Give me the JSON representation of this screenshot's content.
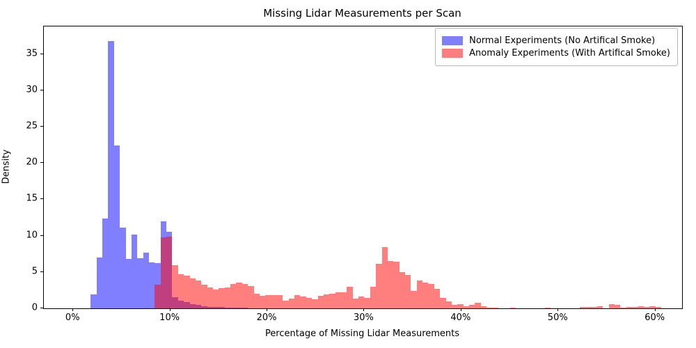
{
  "title": "Missing Lidar Measurements per Scan",
  "x_axis": {
    "label": "Percentage of Missing Lidar Measurements",
    "tick_values": [
      0,
      10,
      20,
      30,
      40,
      50,
      60
    ],
    "tick_labels": [
      "0%",
      "10%",
      "20%",
      "30%",
      "40%",
      "50%",
      "60%"
    ]
  },
  "y_axis": {
    "label": "Density",
    "tick_values": [
      0,
      5,
      10,
      15,
      20,
      25,
      30,
      35
    ],
    "tick_labels": [
      "0",
      "5",
      "10",
      "15",
      "20",
      "25",
      "30",
      "35"
    ]
  },
  "legend": {
    "position": "upper-right",
    "items": [
      {
        "label": "Normal Experiments (No Artifical Smoke)",
        "color": "#7f7ff7"
      },
      {
        "label": "Anomaly Experiments (With Artifical Smoke)",
        "color": "#fb7d7d"
      }
    ]
  },
  "chart_data": {
    "type": "bar",
    "subtype": "overlaid-histograms",
    "title": "Missing Lidar Measurements per Scan",
    "xlabel": "Percentage of Missing Lidar Measurements",
    "ylabel": "Density",
    "grid": false,
    "bin_width_percent": 0.6,
    "xlim_percent": [
      -3.03,
      62.75
    ],
    "ylim": [
      0,
      38.8
    ],
    "series": [
      {
        "name": "Normal Experiments (No Artifical Smoke)",
        "fill": "rgba(0,0,255,0.5)",
        "bins_start_percent_and_density": [
          [
            1.8,
            1.9
          ],
          [
            2.4,
            7.0
          ],
          [
            3.0,
            12.4
          ],
          [
            3.6,
            36.8
          ],
          [
            4.2,
            22.4
          ],
          [
            4.8,
            11.1
          ],
          [
            5.4,
            6.8
          ],
          [
            6.0,
            10.2
          ],
          [
            6.6,
            6.9
          ],
          [
            7.2,
            7.7
          ],
          [
            7.8,
            6.3
          ],
          [
            8.4,
            6.2
          ],
          [
            9.0,
            12.0
          ],
          [
            9.6,
            10.5
          ],
          [
            10.2,
            1.5
          ],
          [
            10.8,
            1.1
          ],
          [
            11.4,
            0.9
          ],
          [
            12.0,
            0.6
          ],
          [
            12.6,
            0.45
          ],
          [
            13.2,
            0.3
          ],
          [
            13.8,
            0.22
          ],
          [
            14.4,
            0.16
          ],
          [
            15.0,
            0.16
          ],
          [
            15.6,
            0.13
          ],
          [
            16.2,
            0.13
          ],
          [
            16.8,
            0.07
          ],
          [
            17.4,
            0.07
          ]
        ]
      },
      {
        "name": "Anomaly Experiments (With Artifical Smoke)",
        "fill": "rgba(255,0,0,0.5)",
        "bins_start_percent_and_density": [
          [
            8.4,
            3.3
          ],
          [
            9.0,
            9.8
          ],
          [
            9.6,
            9.9
          ],
          [
            10.2,
            5.9
          ],
          [
            10.8,
            4.7
          ],
          [
            11.4,
            4.5
          ],
          [
            12.0,
            4.1
          ],
          [
            12.6,
            3.8
          ],
          [
            13.2,
            3.3
          ],
          [
            13.8,
            2.9
          ],
          [
            14.4,
            2.6
          ],
          [
            15.0,
            2.8
          ],
          [
            15.6,
            2.9
          ],
          [
            16.2,
            3.35
          ],
          [
            16.8,
            3.5
          ],
          [
            17.4,
            3.35
          ],
          [
            18.0,
            3.1
          ],
          [
            18.6,
            2.0
          ],
          [
            19.2,
            1.7
          ],
          [
            19.8,
            1.8
          ],
          [
            20.4,
            1.8
          ],
          [
            21.0,
            1.8
          ],
          [
            21.6,
            1.1
          ],
          [
            22.2,
            1.35
          ],
          [
            22.8,
            1.8
          ],
          [
            23.4,
            1.6
          ],
          [
            24.0,
            1.45
          ],
          [
            24.6,
            1.2
          ],
          [
            25.2,
            1.75
          ],
          [
            25.8,
            1.9
          ],
          [
            26.4,
            2.0
          ],
          [
            27.0,
            2.25
          ],
          [
            27.6,
            2.25
          ],
          [
            28.2,
            3.0
          ],
          [
            28.8,
            1.3
          ],
          [
            29.4,
            1.6
          ],
          [
            30.0,
            1.45
          ],
          [
            30.6,
            3.0
          ],
          [
            31.2,
            6.1
          ],
          [
            31.8,
            8.4
          ],
          [
            32.4,
            6.55
          ],
          [
            33.0,
            6.45
          ],
          [
            33.6,
            5.0
          ],
          [
            34.2,
            4.6
          ],
          [
            34.8,
            2.35
          ],
          [
            35.4,
            3.8
          ],
          [
            36.0,
            3.5
          ],
          [
            36.6,
            3.4
          ],
          [
            37.2,
            2.65
          ],
          [
            37.8,
            1.45
          ],
          [
            38.4,
            0.95
          ],
          [
            39.0,
            0.45
          ],
          [
            39.6,
            0.55
          ],
          [
            40.2,
            0.3
          ],
          [
            40.8,
            0.5
          ],
          [
            41.4,
            0.73
          ],
          [
            42.0,
            0.26
          ],
          [
            42.6,
            0.13
          ],
          [
            43.2,
            0.07
          ],
          [
            45.0,
            0.13
          ],
          [
            48.6,
            0.13
          ],
          [
            52.2,
            0.19
          ],
          [
            52.8,
            0.19
          ],
          [
            53.4,
            0.22
          ],
          [
            54.0,
            0.26
          ],
          [
            55.2,
            0.57
          ],
          [
            55.8,
            0.48
          ],
          [
            56.4,
            0.13
          ],
          [
            57.0,
            0.22
          ],
          [
            57.6,
            0.22
          ],
          [
            58.2,
            0.32
          ],
          [
            58.8,
            0.19
          ],
          [
            59.4,
            0.3
          ],
          [
            60.0,
            0.15
          ]
        ]
      }
    ]
  }
}
